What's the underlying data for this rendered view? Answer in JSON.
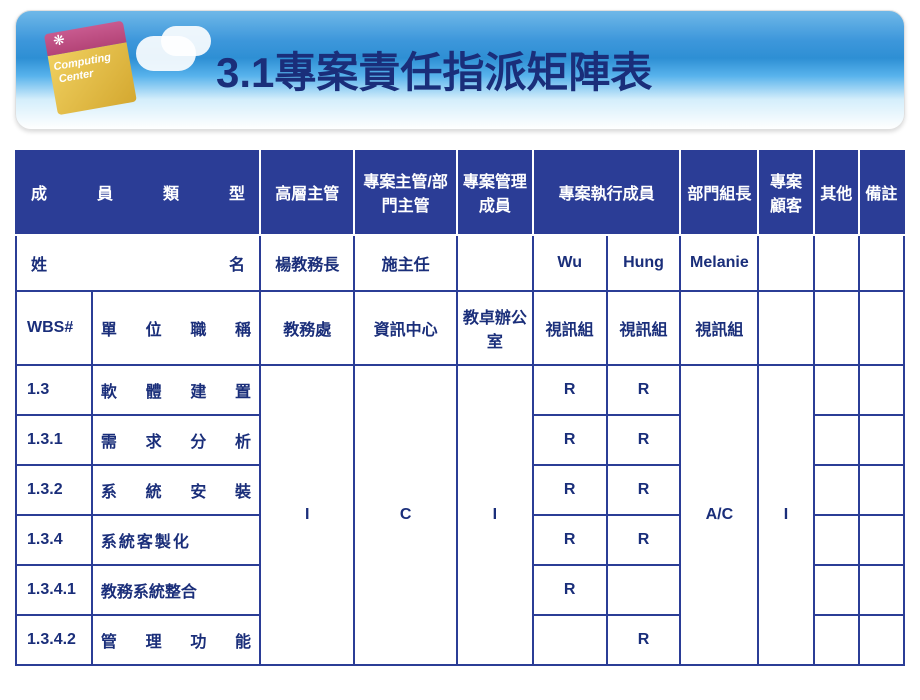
{
  "banner": {
    "logo_line1": "Computing",
    "logo_line2": "Center",
    "title": "3.1專案責任指派矩陣表"
  },
  "table": {
    "colors": {
      "header_bg": "#2b3d96",
      "header_fg": "#ffffff",
      "cell_bg": "#ffffff",
      "cell_fg": "#1a2e7a",
      "border": "#2b3d96"
    },
    "columns": {
      "member_type_label": "成員類型",
      "roles": [
        "高層主管",
        "專案主管/部門主管",
        "專案管理成員",
        "專案執行成員",
        "部門組長",
        "專案顧客",
        "其他",
        "備註"
      ]
    },
    "name_row": {
      "label": "姓名",
      "values": [
        "楊教務長",
        "施主任",
        "",
        "Wu",
        "Hung",
        "Melanie",
        "",
        "",
        ""
      ]
    },
    "position_row": {
      "wbs_label": "WBS#",
      "pos_label": "單位職稱",
      "values": [
        "教務處",
        "資訊中心",
        "教卓辦公室",
        "視訊組",
        "視訊組",
        "視訊組",
        "",
        "",
        ""
      ]
    },
    "rows": [
      {
        "wbs": "1.3",
        "name": "軟體建置",
        "d": "R",
        "e": "R"
      },
      {
        "wbs": "1.3.1",
        "name": "需求分析",
        "d": "R",
        "e": "R"
      },
      {
        "wbs": "1.3.2",
        "name": "系統安裝",
        "d": "R",
        "e": "R"
      },
      {
        "wbs": "1.3.4",
        "name": "系統客製化",
        "d": "R",
        "e": "R"
      },
      {
        "wbs": "1.3.4.1",
        "name": "教務系統整合",
        "d": "R",
        "e": ""
      },
      {
        "wbs": "1.3.4.2",
        "name": "管理功能",
        "d": "",
        "e": "R"
      }
    ],
    "merged": {
      "col_a": "I",
      "col_b": "C",
      "col_c": "I",
      "col_f": "A/C",
      "col_g": "I"
    }
  }
}
